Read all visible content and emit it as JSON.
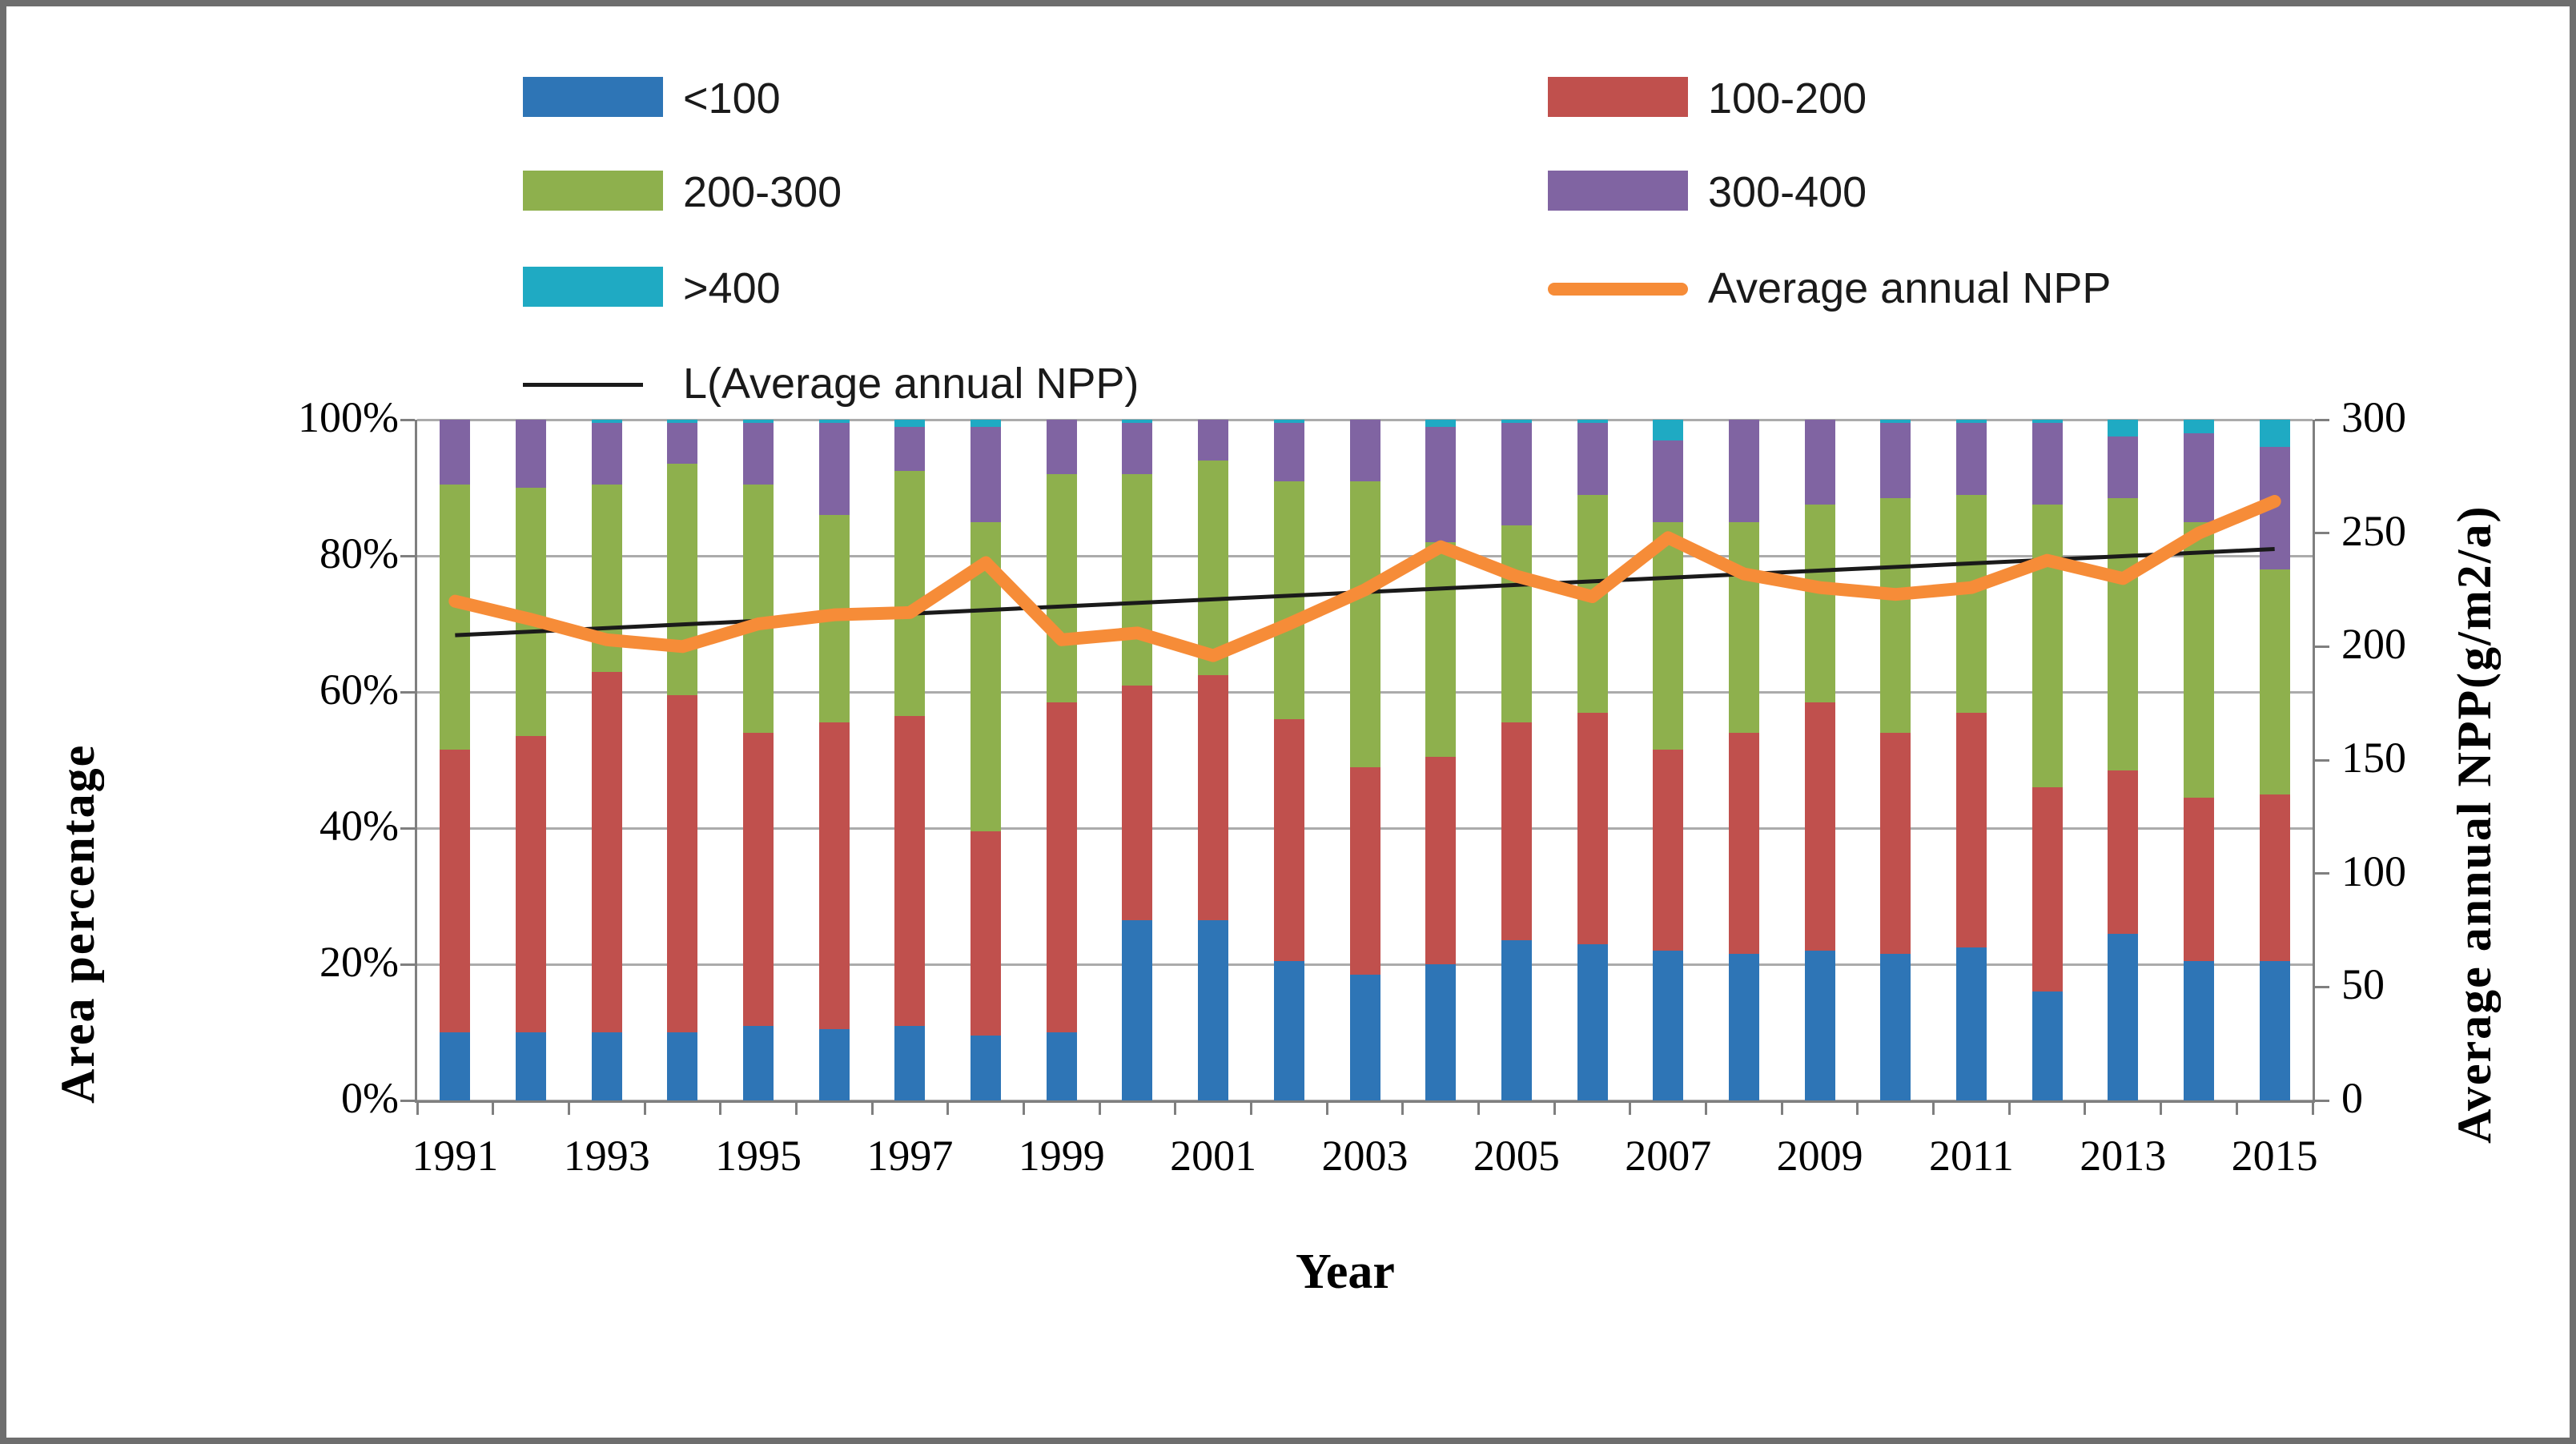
{
  "figure": {
    "background": "#ffffff",
    "border_color": "#6e6e6e"
  },
  "legend": {
    "items": [
      {
        "label": "<100",
        "marker": "swatch",
        "color": "#2E75B6"
      },
      {
        "label": "100-200",
        "marker": "swatch",
        "color": "#C0504D"
      },
      {
        "label": "200-300",
        "marker": "swatch",
        "color": "#8EB04D"
      },
      {
        "label": "300-400",
        "marker": "swatch",
        "color": "#8064A2"
      },
      {
        "label": ">400",
        "marker": "swatch",
        "color": "#1FAAC3"
      },
      {
        "label": "Average annual NPP",
        "marker": "line-thick",
        "color": "#F68C38"
      },
      {
        "label": "L(Average annual NPP)",
        "marker": "line-thin",
        "color": "#1A1A1A"
      }
    ]
  },
  "axes": {
    "left": {
      "title": "Area percentage",
      "tick_labels": [
        "100%",
        "80%",
        "60%",
        "40%",
        "20%",
        "0%"
      ]
    },
    "right": {
      "title": "Average annual NPP(g/m2/a)",
      "tick_labels": [
        "300",
        "250",
        "200",
        "150",
        "100",
        "50",
        "0"
      ]
    },
    "x": {
      "title": "Year",
      "tick_labels": [
        "1991",
        "1993",
        "1995",
        "1997",
        "1999",
        "2001",
        "2003",
        "2005",
        "2007",
        "2009",
        "2011",
        "2013",
        "2015"
      ]
    }
  },
  "chart_data": {
    "type": "bar",
    "subtype": "stacked-percent-with-line",
    "categories": [
      1991,
      1992,
      1993,
      1994,
      1995,
      1996,
      1997,
      1998,
      1999,
      2000,
      2001,
      2002,
      2003,
      2004,
      2005,
      2006,
      2007,
      2008,
      2009,
      2010,
      2011,
      2012,
      2013,
      2014,
      2015
    ],
    "left_ylim": [
      0,
      100
    ],
    "right_ylim": [
      0,
      300
    ],
    "grid": "horizontal-20pct",
    "legend_position": "top-two-columns",
    "series": [
      {
        "name": "<100",
        "type": "bar",
        "color": "#2E75B6",
        "values": [
          10,
          10,
          10,
          10,
          11,
          10.5,
          11,
          9.5,
          10,
          26.5,
          26.5,
          20.5,
          18.5,
          20,
          23.5,
          23,
          22,
          21.5,
          22,
          21.5,
          22.5,
          16,
          24.5,
          20.5,
          20.5
        ]
      },
      {
        "name": "100-200",
        "type": "bar",
        "color": "#C0504D",
        "values": [
          41.5,
          43.5,
          53,
          49.5,
          43,
          45,
          45.5,
          30,
          48.5,
          34.5,
          36,
          35.5,
          30.5,
          30.5,
          32,
          34,
          29.5,
          32.5,
          36.5,
          32.5,
          34.5,
          30,
          24,
          24,
          24.5
        ]
      },
      {
        "name": "200-300",
        "type": "bar",
        "color": "#8EB04D",
        "values": [
          39,
          36.5,
          27.5,
          34,
          36.5,
          30.5,
          36,
          45.5,
          33.5,
          31,
          31.5,
          35,
          42,
          31.5,
          29,
          32,
          33.5,
          31,
          29,
          34.5,
          32,
          41.5,
          40,
          40.5,
          33
        ]
      },
      {
        "name": "300-400",
        "type": "bar",
        "color": "#8064A2",
        "values": [
          9.5,
          10,
          9,
          6,
          9,
          13.5,
          6.5,
          14,
          8,
          7.5,
          6,
          8.5,
          9,
          17,
          15,
          10.5,
          12,
          15,
          12.5,
          11,
          10.5,
          12,
          9,
          13,
          18
        ]
      },
      {
        "name": ">400",
        "type": "bar",
        "color": "#1FAAC3",
        "values": [
          0,
          0,
          0.5,
          0.5,
          0.5,
          0.5,
          1,
          1,
          0,
          0.5,
          0,
          0.5,
          0,
          1,
          0.5,
          0.5,
          3,
          0,
          0,
          0.5,
          0.5,
          0.5,
          2.5,
          2,
          4
        ]
      },
      {
        "name": "Average annual NPP",
        "type": "line",
        "axis": "right",
        "color": "#F68C38",
        "values": [
          220,
          212,
          203,
          200,
          210,
          214,
          215,
          237,
          203,
          206,
          196,
          210,
          225,
          244,
          231,
          222,
          248,
          232,
          226,
          223,
          226,
          238,
          230,
          250,
          264
        ]
      },
      {
        "name": "L(Average annual NPP)",
        "type": "trendline",
        "axis": "right",
        "color": "#1A1A1A",
        "endpoints": [
          205,
          243
        ]
      }
    ]
  },
  "layout_note": "percent stacked area-distribution bars for NPP classes with average annual NPP line and its linear trend"
}
